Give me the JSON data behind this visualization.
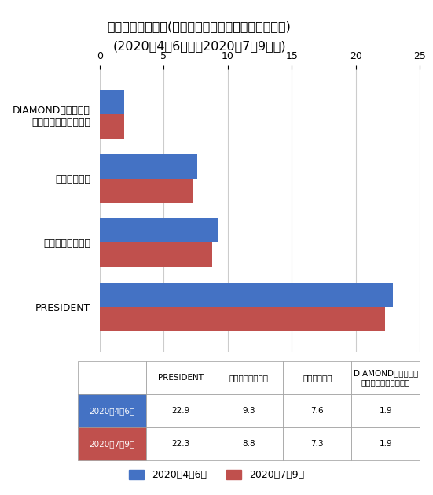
{
  "title_line1": "印刷証明付き部数(ビジネス・金融・マネー誌、万部)",
  "title_line2": "(2020年4〜6月期と2020年7〜9月期)",
  "categories": [
    "PRESIDENT",
    "週刊ダイヤモンド",
    "週刊東洋経済",
    "DIAMONDハーバード\n・ビジネス・レビュー"
  ],
  "series1_label": "2020年4〜6月",
  "series2_label": "2020年7〜9月",
  "series1_values": [
    22.9,
    9.3,
    7.6,
    1.9
  ],
  "series2_values": [
    22.3,
    8.8,
    7.3,
    1.9
  ],
  "color1": "#4472C4",
  "color2": "#C0504D",
  "xlim": [
    0,
    25
  ],
  "xticks": [
    0,
    5,
    10,
    15,
    20,
    25
  ],
  "bar_height": 0.38,
  "table_col_labels": [
    "PRESIDENT",
    "週刊ダイヤモンド",
    "週刊東洋経済",
    "DIAMONDハーバード\n・ビジネス・レビュー"
  ],
  "table_row_label1": "2020年4〜6月",
  "table_row_label2": "2020年7〜9月",
  "table_data": [
    [
      22.9,
      9.3,
      7.6,
      1.9
    ],
    [
      22.3,
      8.8,
      7.3,
      1.9
    ]
  ],
  "background_color": "#FFFFFF",
  "grid_color": "#CCCCCC",
  "title_fontsize": 11.5,
  "label_fontsize": 9,
  "tick_fontsize": 9
}
